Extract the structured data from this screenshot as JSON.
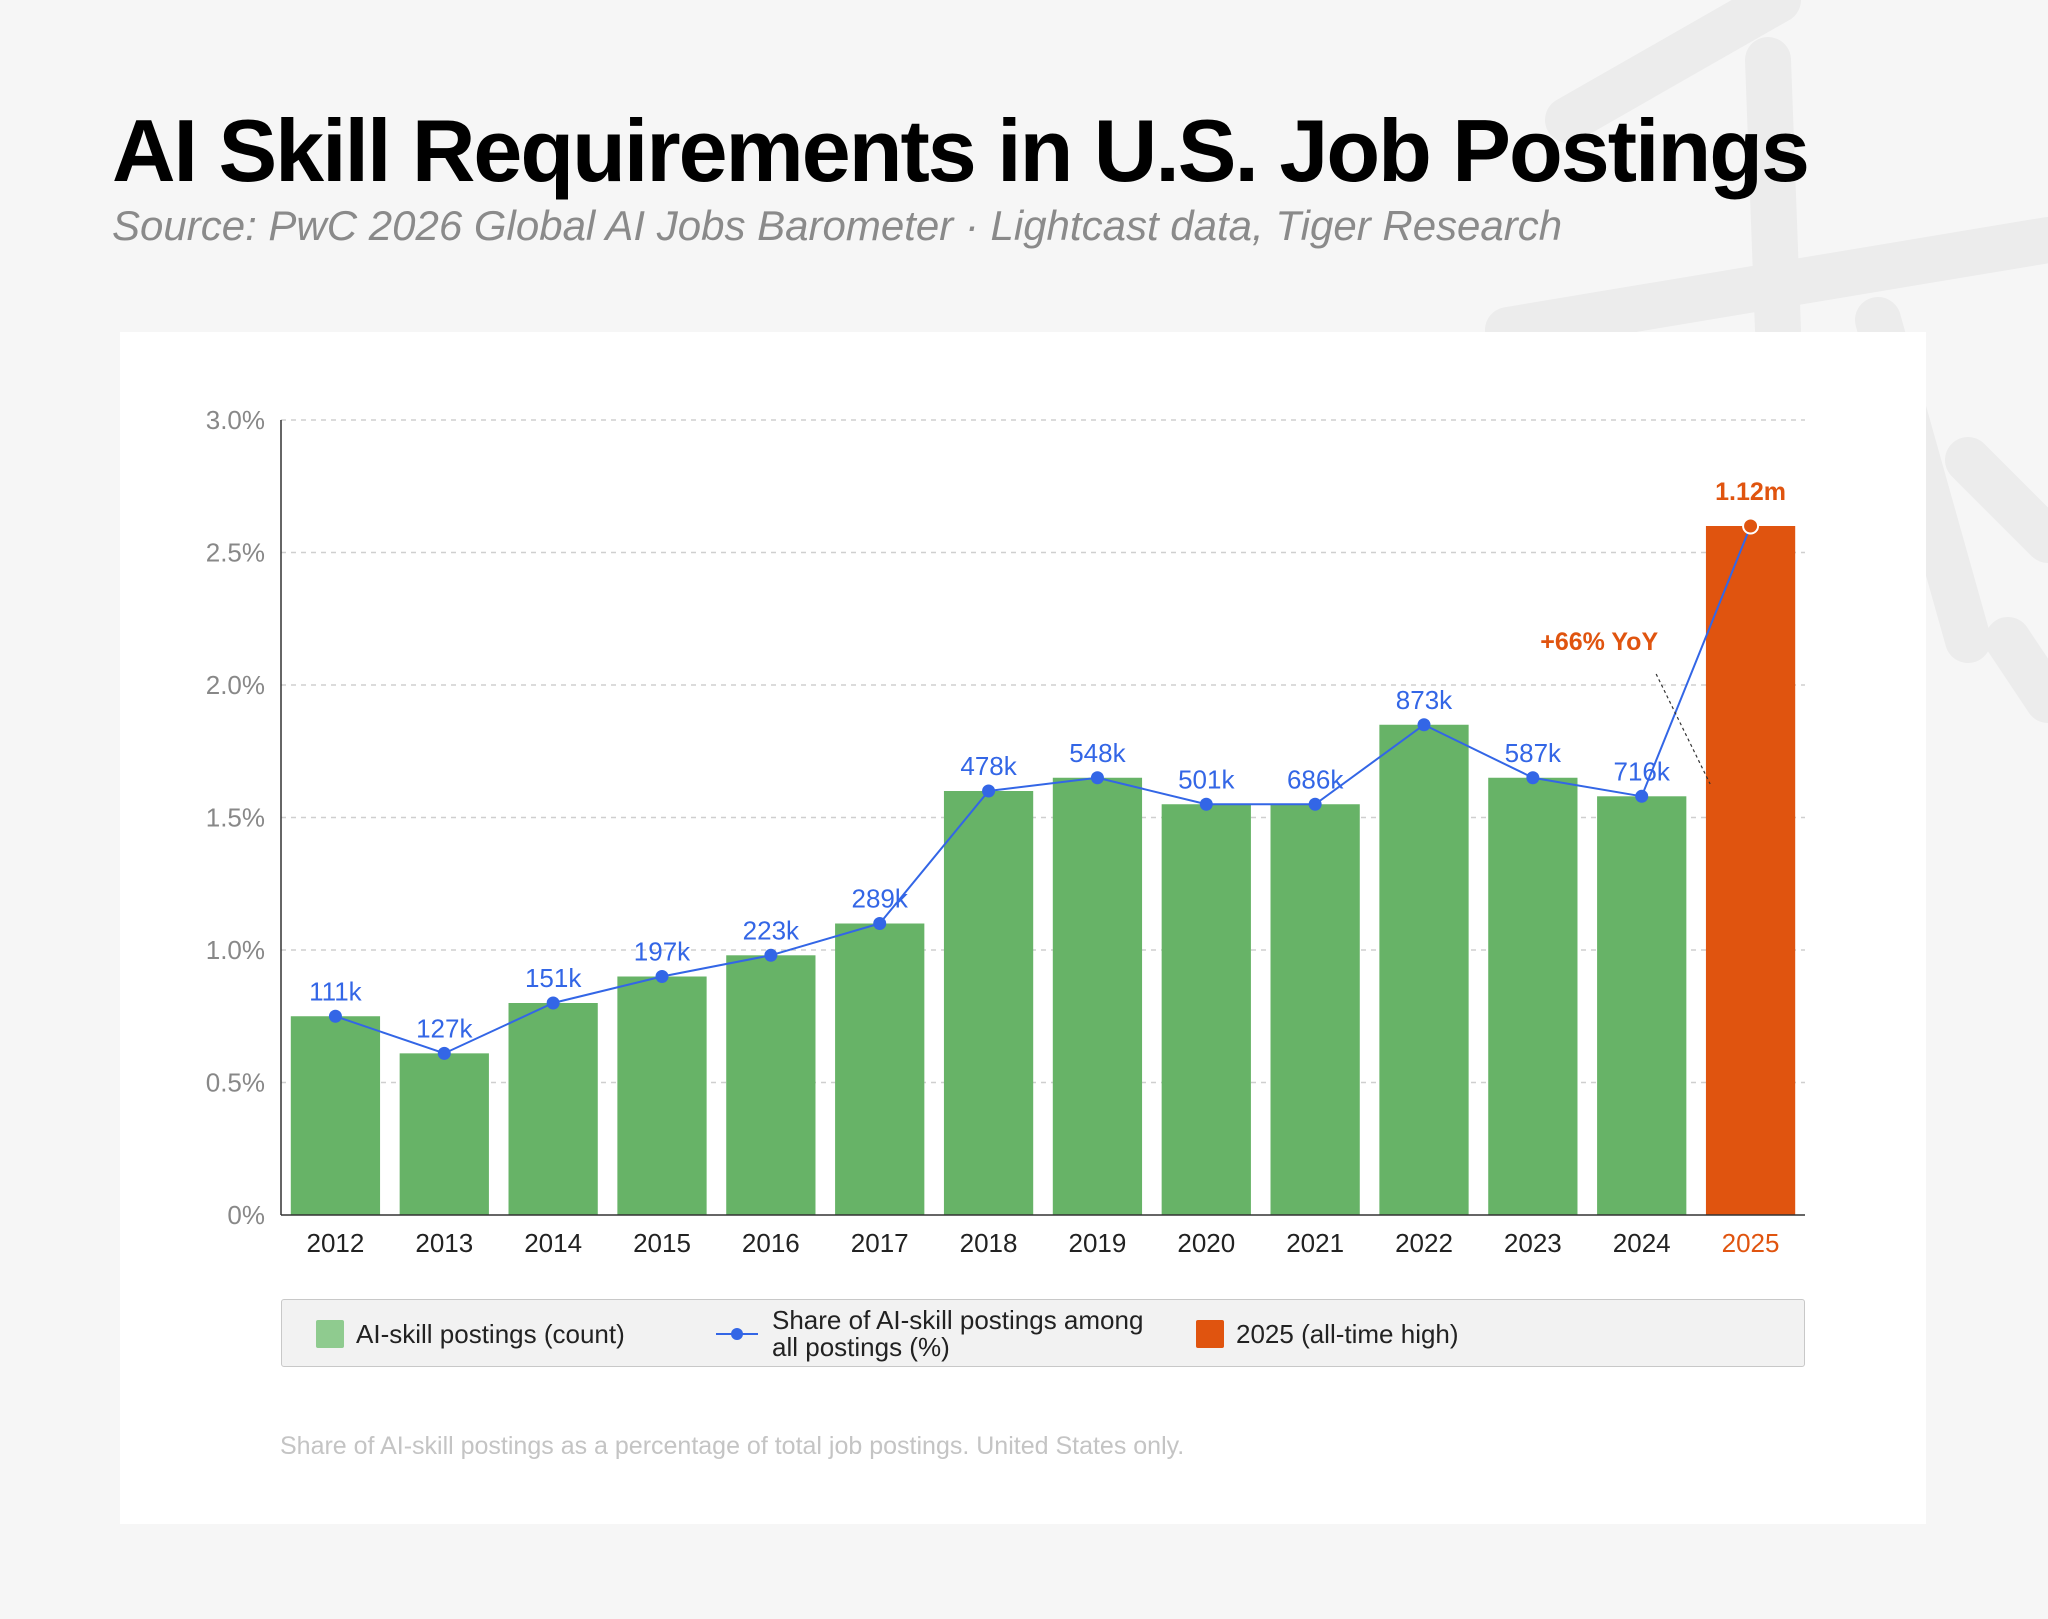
{
  "title": "AI Skill Requirements in U.S. Job Postings",
  "subtitle": "Source: PwC 2026 Global AI Jobs Barometer · Lightcast data, Tiger Research",
  "legend": {
    "count": "AI-skill postings (count)",
    "share_line1": "Share of AI-skill postings among",
    "share_line2": "all postings (%)",
    "highlight": "2025 (all-time high)"
  },
  "footnote": "Share of AI-skill postings as a percentage of total job postings. United States only.",
  "colors": {
    "bar": "#67b367",
    "highlight": "#e0540f",
    "line": "#3366e6",
    "grid": "#cfcfcf",
    "tick": "#888888"
  },
  "chart_data": {
    "type": "bar",
    "categories": [
      "2012",
      "2013",
      "2014",
      "2015",
      "2016",
      "2017",
      "2018",
      "2019",
      "2020",
      "2021",
      "2022",
      "2023",
      "2024",
      "2025"
    ],
    "series": [
      {
        "name": "AI-skill postings (count)",
        "type": "bar",
        "values": [
          0.75,
          0.61,
          0.8,
          0.9,
          0.98,
          1.1,
          1.6,
          1.65,
          1.55,
          1.55,
          1.85,
          1.65,
          1.58,
          2.6
        ]
      },
      {
        "name": "Share of AI-skill postings among all postings (%)",
        "type": "line",
        "values": [
          0.75,
          0.61,
          0.8,
          0.9,
          0.98,
          1.1,
          1.6,
          1.65,
          1.55,
          1.55,
          1.85,
          1.65,
          1.58,
          2.6
        ]
      }
    ],
    "data_labels": [
      "111k",
      "127k",
      "151k",
      "197k",
      "223k",
      "289k",
      "478k",
      "548k",
      "501k",
      "686k",
      "873k",
      "587k",
      "716k",
      "1.12m"
    ],
    "highlight_index": 13,
    "annotation": "+66% YoY",
    "yticks": [
      "0%",
      "0.5%",
      "1.0%",
      "1.5%",
      "2.0%",
      "2.5%",
      "3.0%"
    ],
    "ylim": [
      0,
      3
    ],
    "grid": "horizontal dashed",
    "legend_position": "bottom"
  }
}
